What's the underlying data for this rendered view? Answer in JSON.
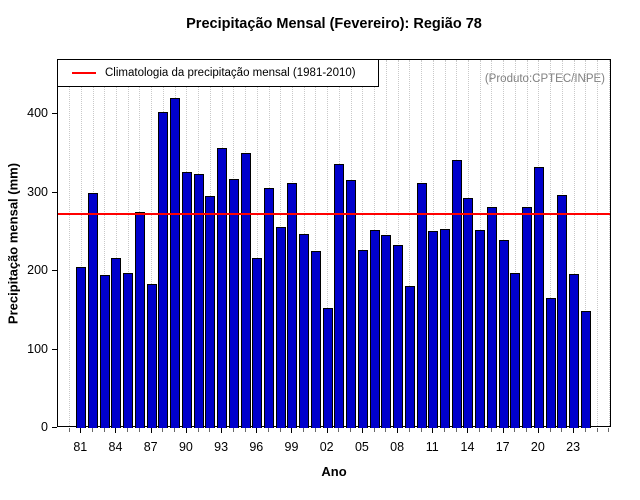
{
  "title": "Precipitação Mensal (Fevereiro): Região 78",
  "legend": {
    "label": "Climatologia da precipitação mensal (1981-2010)"
  },
  "watermark": "(Produto:CPTEC/INPE)",
  "chart_data": {
    "type": "bar",
    "title": "Precipitação Mensal (Fevereiro): Região 78",
    "xlabel": "Ano",
    "ylabel": "Precipitação mensal (mm)",
    "years": [
      1981,
      1982,
      1983,
      1984,
      1985,
      1986,
      1987,
      1988,
      1989,
      1990,
      1991,
      1992,
      1993,
      1994,
      1995,
      1996,
      1997,
      1998,
      1999,
      2000,
      2001,
      2002,
      2003,
      2004,
      2005,
      2006,
      2007,
      2008,
      2009,
      2010,
      2011,
      2012,
      2013,
      2014,
      2015,
      2016,
      2017,
      2018,
      2019,
      2020,
      2021,
      2022,
      2023,
      2024
    ],
    "values": [
      205,
      300,
      195,
      217,
      198,
      275,
      184,
      402,
      421,
      326,
      324,
      296,
      357,
      317,
      350,
      216,
      306,
      256,
      312,
      247,
      226,
      153,
      336,
      316,
      227,
      252,
      246,
      233,
      181,
      312,
      251,
      253,
      342,
      293,
      252,
      281,
      240,
      197,
      282,
      333,
      166,
      297,
      196,
      149
    ],
    "climatology_value": 273,
    "climatology_label": "Climatologia da precipitação mensal (1981-2010)",
    "ylim": [
      0,
      469
    ],
    "yticks": [
      0,
      100,
      200,
      300,
      400
    ],
    "xtick_labels": [
      "81",
      "84",
      "87",
      "90",
      "93",
      "96",
      "99",
      "02",
      "05",
      "08",
      "11",
      "14",
      "17",
      "20",
      "23"
    ],
    "xtick_step": 3,
    "grid": "vertical-dotted",
    "legend_position": "topleft",
    "colors": {
      "bar": "#0000CC",
      "bar_border": "#000000",
      "climatology_line": "#FF0000",
      "grid": "#C9C9C9",
      "watermark": "#818181"
    }
  }
}
